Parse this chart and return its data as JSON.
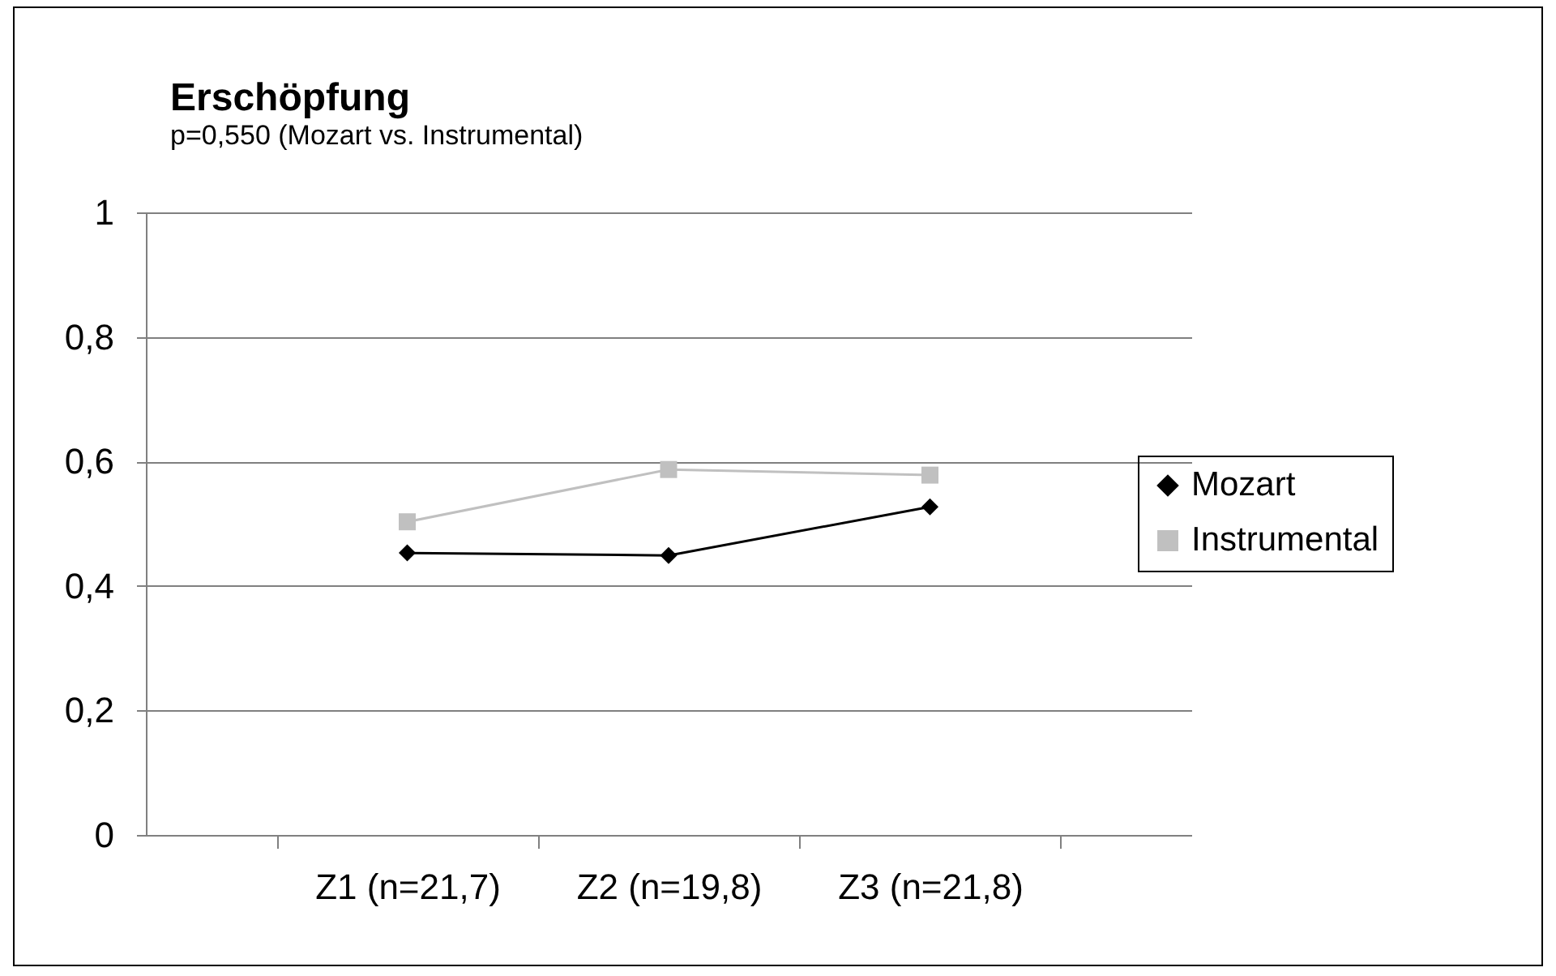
{
  "chart_data": {
    "type": "line",
    "title": "Erschöpfung",
    "subtitle": "p=0,550 (Mozart vs. Instrumental)",
    "categories": [
      "Z1 (n=21,7)",
      "Z2 (n=19,8)",
      "Z3 (n=21,8)"
    ],
    "series": [
      {
        "name": "Mozart",
        "color": "#000000",
        "marker": "diamond",
        "values": [
          0.453,
          0.449,
          0.527
        ]
      },
      {
        "name": "Instrumental",
        "color": "#c0c0c0",
        "marker": "square",
        "values": [
          0.503,
          0.587,
          0.578
        ]
      }
    ],
    "ylim": [
      0,
      1
    ],
    "yticks": [
      {
        "value": 0,
        "label": "0"
      },
      {
        "value": 0.2,
        "label": "0,2"
      },
      {
        "value": 0.4,
        "label": "0,4"
      },
      {
        "value": 0.6,
        "label": "0,6"
      },
      {
        "value": 0.8,
        "label": "0,8"
      },
      {
        "value": 1,
        "label": "1"
      }
    ],
    "grid": "y",
    "legend": "right",
    "line_style": "solid"
  }
}
